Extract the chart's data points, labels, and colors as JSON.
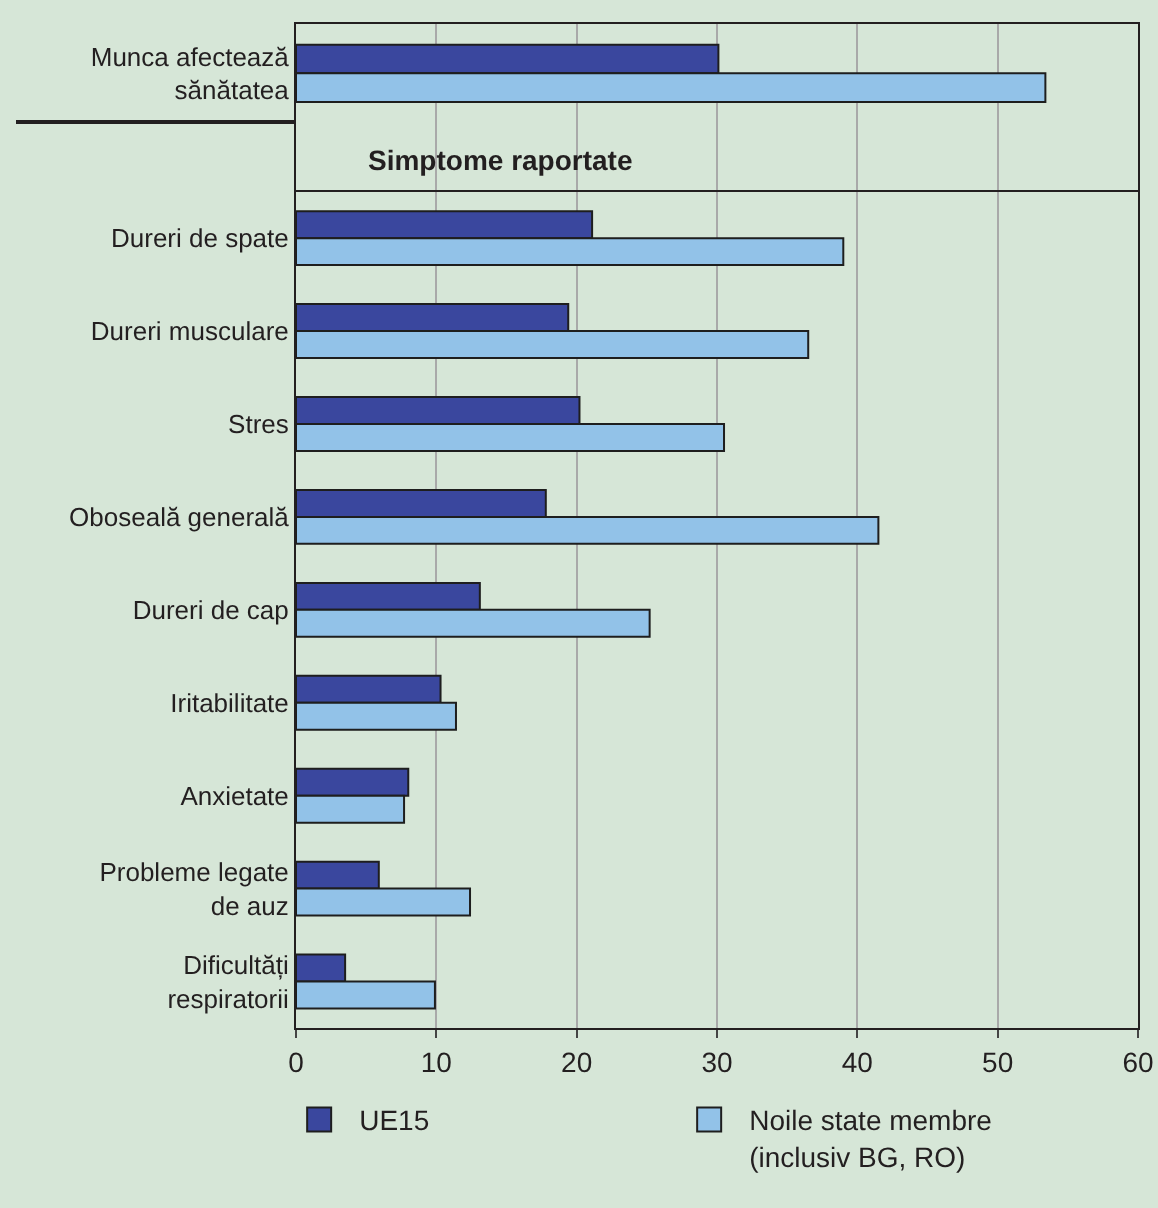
{
  "chart_data": [
    {
      "type": "bar",
      "orientation": "horizontal",
      "categories": [
        "Munca afectează\nsănătatea"
      ],
      "series": [
        {
          "color": "#3a479e",
          "values": [
            30.1
          ]
        },
        {
          "color": "#92c2e8",
          "values": [
            53.4
          ]
        }
      ],
      "xlim": [
        0,
        60
      ],
      "xticks": [
        0,
        10,
        20,
        30,
        40,
        50,
        60
      ],
      "tick_labels": "y",
      "grid": "x"
    },
    {
      "type": "bar",
      "orientation": "horizontal",
      "title": "Simptome raportate",
      "categories": [
        "Dureri de spate",
        "Dureri musculare",
        "Stres",
        "Oboseală generală",
        "Dureri de cap",
        "Iritabilitate",
        "Anxietate",
        "Probleme legate\nde auz",
        "Dificultăți\nrespiratorii"
      ],
      "series": [
        {
          "name": "UE15",
          "color": "#3a479e",
          "values": [
            21.1,
            19.4,
            20.2,
            17.8,
            13.1,
            10.3,
            8.0,
            5.9,
            3.5
          ]
        },
        {
          "name": "Noile state membre\n(inclusiv BG, RO)",
          "color": "#92c2e8",
          "values": [
            39.0,
            36.5,
            30.5,
            41.5,
            25.2,
            11.4,
            7.7,
            12.4,
            9.9
          ]
        }
      ],
      "xlim": [
        0,
        60
      ],
      "xticks": [
        0,
        10,
        20,
        30,
        40,
        50,
        60
      ],
      "grid": "x",
      "legend": "bottom"
    }
  ]
}
